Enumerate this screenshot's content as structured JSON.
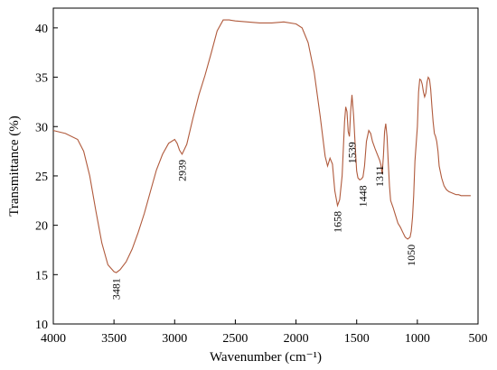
{
  "chart_data": {
    "type": "line",
    "xlabel": "Wavenumber (cm⁻¹)",
    "ylabel": "Transmittance (%)",
    "xlim": [
      4000,
      500
    ],
    "ylim": [
      10,
      42
    ],
    "x_direction": "reversed",
    "grid": false,
    "line_color": "#b05a3c",
    "x_ticks": [
      4000,
      3500,
      3000,
      2500,
      2000,
      1500,
      1000,
      500
    ],
    "y_ticks": [
      10,
      15,
      20,
      25,
      30,
      35,
      40
    ],
    "series": [
      {
        "x": [
          4000,
          3900,
          3800,
          3750,
          3700,
          3650,
          3600,
          3550,
          3500,
          3481,
          3450,
          3400,
          3350,
          3300,
          3250,
          3200,
          3150,
          3100,
          3050,
          3000,
          2980,
          2960,
          2939,
          2900,
          2850,
          2800,
          2750,
          2700,
          2650,
          2600,
          2550,
          2500,
          2400,
          2300,
          2200,
          2100,
          2000,
          1950,
          1900,
          1850,
          1800,
          1760,
          1740,
          1720,
          1700,
          1680,
          1658,
          1640,
          1620,
          1600,
          1590,
          1580,
          1570,
          1560,
          1550,
          1539,
          1525,
          1510,
          1500,
          1490,
          1475,
          1460,
          1448,
          1435,
          1420,
          1400,
          1385,
          1370,
          1350,
          1330,
          1311,
          1300,
          1290,
          1280,
          1270,
          1260,
          1250,
          1240,
          1230,
          1220,
          1200,
          1180,
          1160,
          1140,
          1120,
          1100,
          1080,
          1060,
          1050,
          1040,
          1030,
          1020,
          1000,
          990,
          980,
          970,
          960,
          950,
          940,
          930,
          920,
          910,
          900,
          890,
          880,
          870,
          860,
          850,
          840,
          830,
          820,
          800,
          780,
          760,
          740,
          720,
          700,
          680,
          660,
          640,
          620,
          600,
          580,
          560
        ],
        "y": [
          29.6,
          29.3,
          28.7,
          27.5,
          25.0,
          21.5,
          18.2,
          16.0,
          15.3,
          15.2,
          15.5,
          16.3,
          17.6,
          19.3,
          21.2,
          23.4,
          25.6,
          27.2,
          28.3,
          28.7,
          28.3,
          27.6,
          27.2,
          28.2,
          30.8,
          33.2,
          35.2,
          37.4,
          39.7,
          40.8,
          40.8,
          40.7,
          40.6,
          40.5,
          40.5,
          40.6,
          40.4,
          40.0,
          38.5,
          35.5,
          31.0,
          27.0,
          26.0,
          26.8,
          26.2,
          23.5,
          22.0,
          22.6,
          25.0,
          30.5,
          32.0,
          31.5,
          29.5,
          29.0,
          31.5,
          33.2,
          31.0,
          27.5,
          25.5,
          24.8,
          24.6,
          24.7,
          24.9,
          26.0,
          28.5,
          29.6,
          29.3,
          28.5,
          27.8,
          27.2,
          26.6,
          26.1,
          25.2,
          27.0,
          29.5,
          30.3,
          29.0,
          26.5,
          24.0,
          22.5,
          21.8,
          21.0,
          20.2,
          19.8,
          19.3,
          18.8,
          18.6,
          18.8,
          19.4,
          20.8,
          23.0,
          26.5,
          30.0,
          33.5,
          34.8,
          34.7,
          34.3,
          33.5,
          33.0,
          33.4,
          34.5,
          35.0,
          34.8,
          33.8,
          32.0,
          30.5,
          29.3,
          29.0,
          28.5,
          27.5,
          26.0,
          24.8,
          24.0,
          23.6,
          23.4,
          23.3,
          23.2,
          23.1,
          23.1,
          23.0,
          23.0,
          23.0,
          23.0,
          23.0
        ]
      }
    ],
    "annotations": [
      {
        "text": "3481",
        "x": 3481,
        "y": 15.2
      },
      {
        "text": "2939",
        "x": 2939,
        "y": 27.2
      },
      {
        "text": "1658",
        "x": 1658,
        "y": 22.0
      },
      {
        "text": "1539",
        "x": 1539,
        "y": 29.0
      },
      {
        "text": "1448",
        "x": 1448,
        "y": 24.6
      },
      {
        "text": "1311",
        "x": 1311,
        "y": 26.6
      },
      {
        "text": "1050",
        "x": 1050,
        "y": 18.6
      }
    ]
  }
}
